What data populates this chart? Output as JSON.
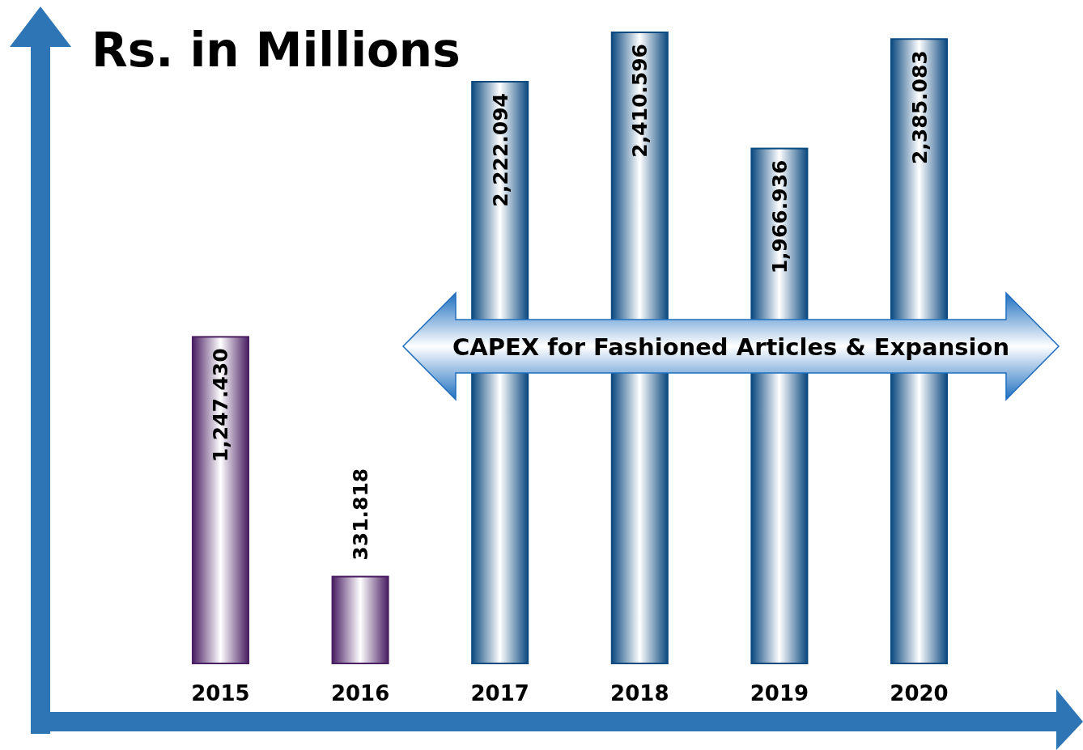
{
  "chart_data": {
    "type": "bar",
    "title": "Rs. in Millions",
    "categories": [
      "2015",
      "2016",
      "2017",
      "2018",
      "2019",
      "2020"
    ],
    "values": [
      1247.43,
      331.818,
      2222.094,
      2410.596,
      1966.936,
      2385.083
    ],
    "value_labels": [
      "1,247.430",
      "331.818",
      "2,222.094",
      "2,410.596",
      "1,966.936",
      "2,385.083"
    ],
    "colors": [
      "#4a1f63",
      "#4a1f63",
      "#0d4a80",
      "#0d4a80",
      "#0d4a80",
      "#0d4a80"
    ],
    "annotations": [
      "CAPEX for Fashioned Articles & Expansion"
    ]
  }
}
